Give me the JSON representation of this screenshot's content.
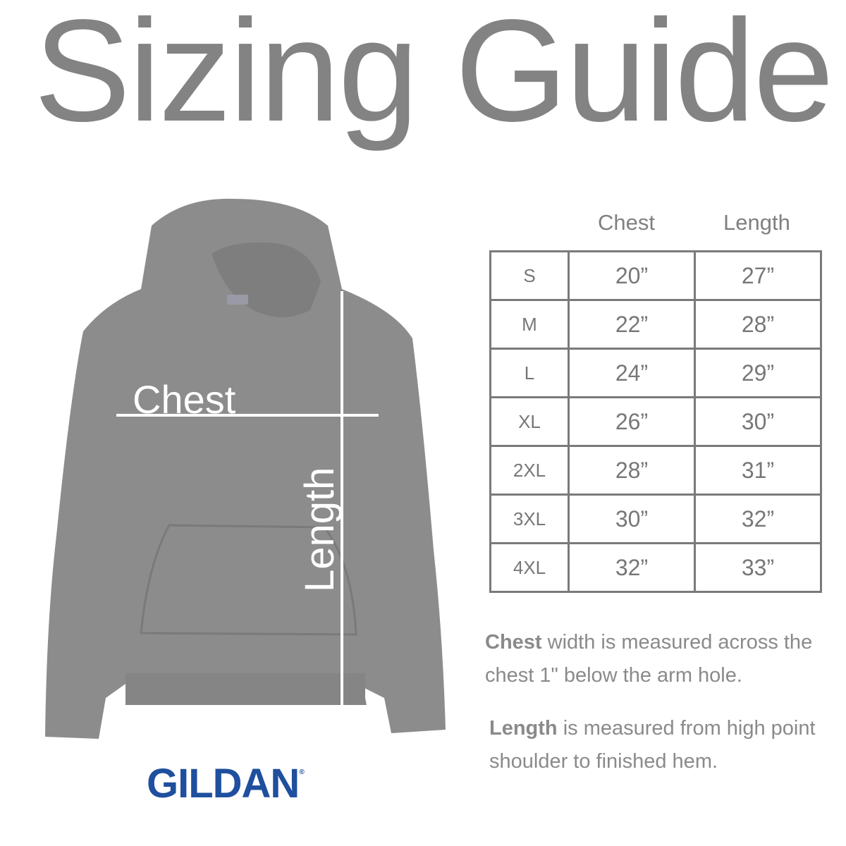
{
  "title": "Sizing Guide",
  "diagram": {
    "chest_label": "Chest",
    "length_label": "Length"
  },
  "brand": {
    "name": "GILDAN",
    "mark": "®",
    "color": "#1f4f9e"
  },
  "table": {
    "headers": [
      "Chest",
      "Length"
    ],
    "rows": [
      {
        "size": "S",
        "chest": "20”",
        "length": "27”"
      },
      {
        "size": "M",
        "chest": "22”",
        "length": "28”"
      },
      {
        "size": "L",
        "chest": "24”",
        "length": "29”"
      },
      {
        "size": "XL",
        "chest": "26”",
        "length": "30”"
      },
      {
        "size": "2XL",
        "chest": "28”",
        "length": "31”"
      },
      {
        "size": "3XL",
        "chest": "30”",
        "length": "32”"
      },
      {
        "size": "4XL",
        "chest": "32”",
        "length": "33”"
      }
    ]
  },
  "notes": {
    "chest_bold": "Chest",
    "chest_text": " width is measured across the chest 1\" below the arm hole.",
    "length_bold": "Length",
    "length_text": " is measured from high point shoulder to finished hem."
  }
}
